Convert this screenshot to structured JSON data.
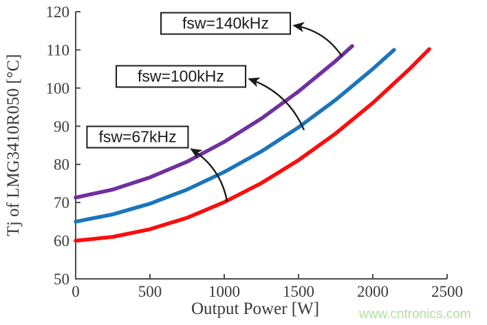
{
  "watermark": {
    "text": "www.cntronics.com",
    "color": "#b0dd9d"
  },
  "chart_data": {
    "type": "line",
    "title": "",
    "xlabel": "Output Power [W]",
    "ylabel": "Tj of LMG3410R050 [°C]",
    "xlim": [
      0,
      2500
    ],
    "ylim": [
      50,
      120
    ],
    "x_ticks": [
      0,
      500,
      1000,
      1500,
      2000,
      2500
    ],
    "y_ticks": [
      50,
      60,
      70,
      80,
      90,
      100,
      110,
      120
    ],
    "grid": false,
    "legend_position": "none",
    "axis_color": "#4b4b4b",
    "tick_text_color": "#3a3a3a",
    "annotation_color": "#1b1b1b",
    "series": [
      {
        "name": "fsw=67kHz",
        "color": "#fb0d0d",
        "points": [
          [
            0,
            60
          ],
          [
            250,
            61.0
          ],
          [
            500,
            63.0
          ],
          [
            750,
            66.0
          ],
          [
            1000,
            70.1
          ],
          [
            1250,
            75.1
          ],
          [
            1500,
            81.1
          ],
          [
            1750,
            88.1
          ],
          [
            2000,
            96.1
          ],
          [
            2250,
            105.1
          ],
          [
            2380,
            110.2
          ]
        ]
      },
      {
        "name": "fsw=100kHz",
        "color": "#1b75bc",
        "points": [
          [
            0,
            65
          ],
          [
            250,
            66.9
          ],
          [
            500,
            69.7
          ],
          [
            750,
            73.4
          ],
          [
            1000,
            78.0
          ],
          [
            1250,
            83.4
          ],
          [
            1500,
            89.7
          ],
          [
            1750,
            96.9
          ],
          [
            2000,
            105.0
          ],
          [
            2143,
            110.0
          ]
        ]
      },
      {
        "name": "fsw=140kHz",
        "color": "#7030a0",
        "points": [
          [
            0,
            71.3
          ],
          [
            250,
            73.4
          ],
          [
            500,
            76.6
          ],
          [
            750,
            80.7
          ],
          [
            1000,
            85.9
          ],
          [
            1250,
            92.0
          ],
          [
            1500,
            99.1
          ],
          [
            1750,
            107.1
          ],
          [
            1861,
            111.0
          ]
        ]
      }
    ],
    "annotations": [
      {
        "label": "fsw=140kHz",
        "box_center": [
          1009,
          116.9
        ],
        "arrow_head": [
          1468,
          116.4
        ],
        "arrow_tail": [
          1792,
          108.3
        ]
      },
      {
        "label": "fsw=100kHz",
        "box_center": [
          708,
          103.0
        ],
        "arrow_head": [
          1167,
          102.4
        ],
        "arrow_tail": [
          1537,
          89.0
        ]
      },
      {
        "label": "fsw=67kHz",
        "box_center": [
          417,
          87.2
        ],
        "arrow_head": [
          778,
          84.0
        ],
        "arrow_tail": [
          1019,
          70.3
        ]
      }
    ]
  }
}
